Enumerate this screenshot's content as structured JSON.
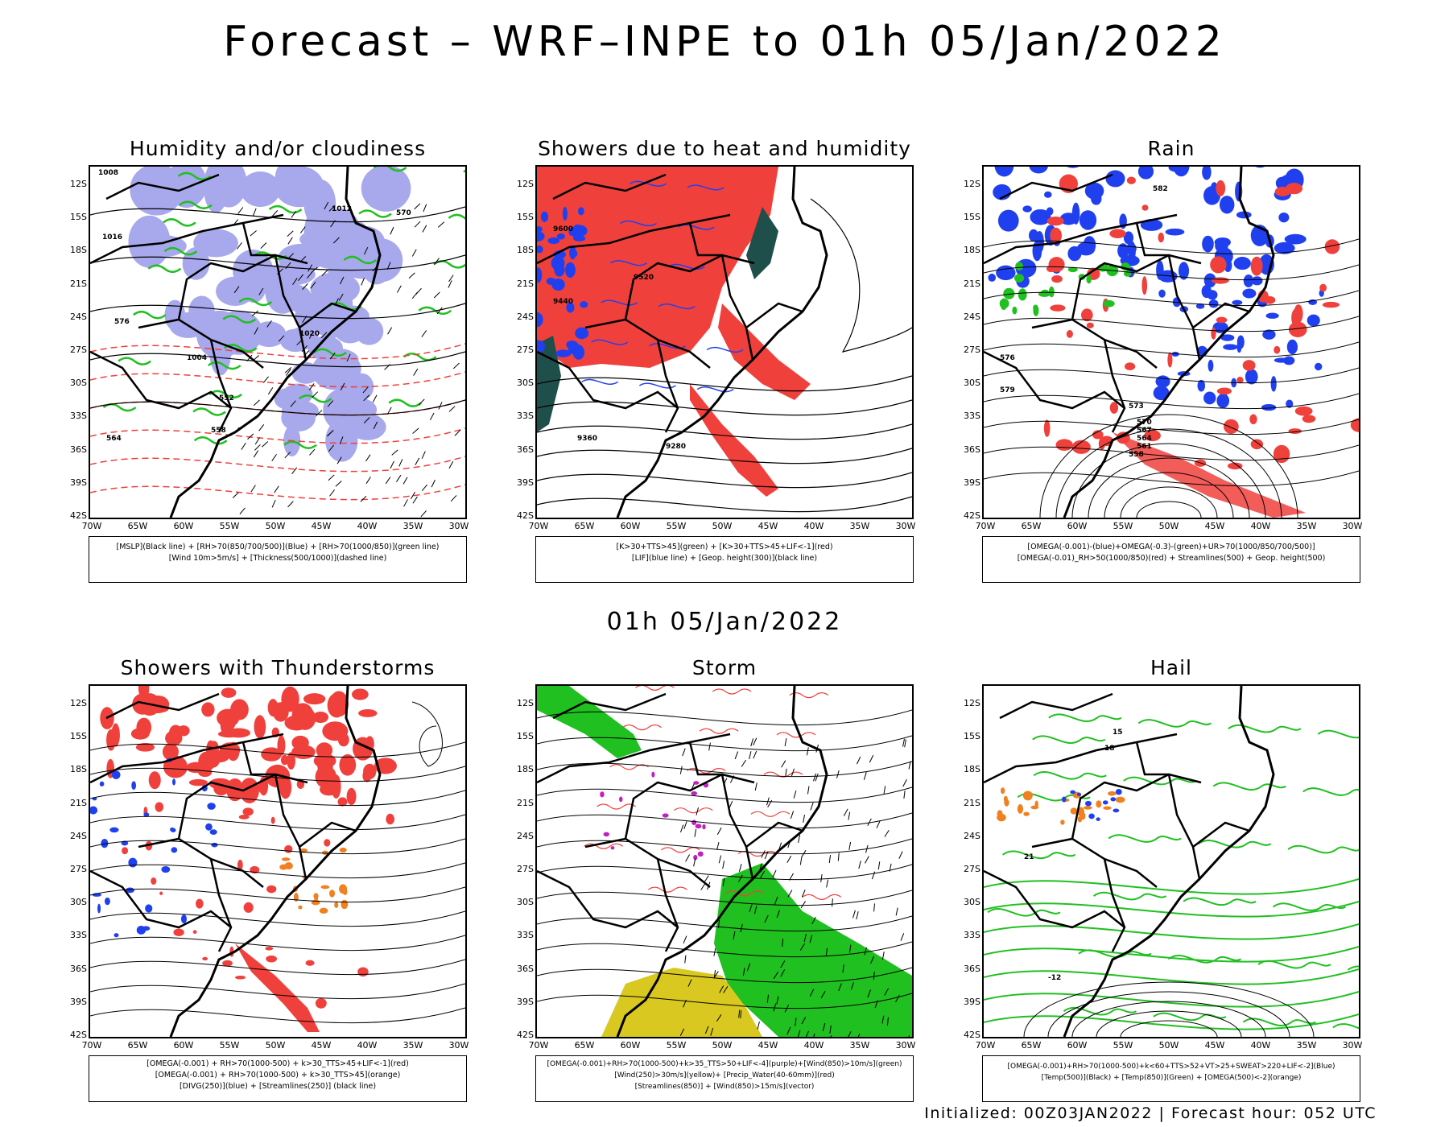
{
  "header": {
    "title": "Forecast – WRF–INPE to 01h 05/Jan/2022",
    "mid_title": "01h 05/Jan/2022"
  },
  "axes": {
    "lat_labels": [
      "12S",
      "15S",
      "18S",
      "21S",
      "24S",
      "27S",
      "30S",
      "33S",
      "36S",
      "39S",
      "42S"
    ],
    "lon_labels": [
      "70W",
      "65W",
      "60W",
      "55W",
      "50W",
      "45W",
      "40W",
      "35W",
      "30W"
    ]
  },
  "panels": [
    {
      "id": "humidity",
      "title": "Humidity and/or cloudiness",
      "legend": [
        "[MSLP](Black line) + [RH>70(850/700/500)](Blue) + [RH>70(1000/850)](green line)",
        "[Wind 10m>5m/s] + [Thickness(500/1000)](dashed line)"
      ]
    },
    {
      "id": "showers-heat",
      "title": "Showers due to heat and humidity",
      "legend": [
        "[K>30+TTS>45](green) + [K>30+TTS>45+LIF<-1](red)",
        "[LIF](blue line) + [Geop. height(300)](black line)"
      ]
    },
    {
      "id": "rain",
      "title": "Rain",
      "legend": [
        "[OMEGA(-0.001)-(blue)+OMEGA(-0.3)-(green)+UR>70(1000/850/700/500)]",
        "[OMEGA(-0.01)_RH>50(1000/850)(red) + Streamlines(500) + Geop. height(500)"
      ]
    },
    {
      "id": "thunderstorms",
      "title": "Showers with Thunderstorms",
      "legend": [
        "[OMEGA(-0.001) + RH>70(1000-500) + k>30_TTS>45+LIF<-1](red)",
        "[OMEGA(-0.001) + RH>70(1000-500) + k>30_TTS>45](orange)",
        "[DIVG(250)](blue) + [Streamlines(250)] (black line)"
      ]
    },
    {
      "id": "storm",
      "title": "Storm",
      "legend": [
        "[OMEGA(-0.001)+RH>70(1000-500)+k>35_TTS>50+LIF<-4](purple)+[Wind(850)>10m/s](green)",
        "[Wind(250)>30m/s](yellow)+ [Precip_Water(40-60mm)](red)",
        "[Streamlines(850)] + [Wind(850)>15m/s](vector)"
      ]
    },
    {
      "id": "hail",
      "title": "Hail",
      "legend": [
        "[OMEGA(-0.001)+RH>70(1000-500)+k<60+TTS>52+VT>25+SWEAT>220+LIF<-2](Blue)",
        "[Temp(500)](Black) + [Temp(850)](Green) + [OMEGA(500)<-2](orange)"
      ]
    }
  ],
  "footer": {
    "text": "Initialized: 00Z03JAN2022 | Forecast hour: 052 UTC"
  },
  "colors": {
    "red": "#f0403c",
    "blue": "#2040f0",
    "green": "#20c020",
    "lavender": "#a8a8ec",
    "orange": "#f08020",
    "purple": "#c020c0",
    "yellow": "#d8c820",
    "darkgreen": "#1f4f4a"
  },
  "contour_labels": {
    "humidity": [
      "1008",
      "1012",
      "1016",
      "1020",
      "1004",
      "570",
      "576",
      "558",
      "552",
      "564"
    ],
    "showers-heat": [
      "9600",
      "9520",
      "9440",
      "9360",
      "9280"
    ],
    "rain": [
      "582",
      "579",
      "576",
      "573",
      "570",
      "567",
      "564",
      "561",
      "558"
    ],
    "hail": [
      "-12",
      "15",
      "18",
      "21"
    ]
  }
}
